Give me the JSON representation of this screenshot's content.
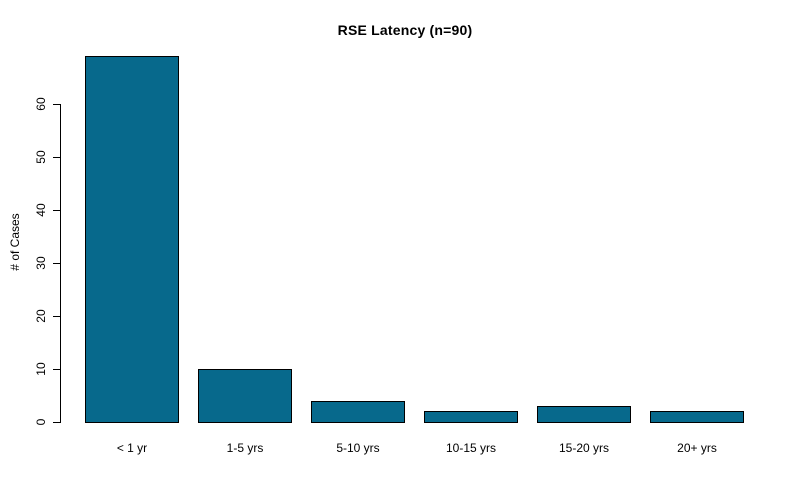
{
  "chart_data": {
    "type": "bar",
    "title": "RSE Latency (n=90)",
    "xlabel": "",
    "ylabel": "# of Cases",
    "categories": [
      "< 1 yr",
      "1-5 yrs",
      "5-10 yrs",
      "10-15 yrs",
      "15-20 yrs",
      "20+ yrs"
    ],
    "values": [
      69,
      10,
      4,
      2,
      3,
      2
    ],
    "n_total": 90,
    "yticks": [
      0,
      10,
      20,
      30,
      40,
      50,
      60
    ],
    "ylim": [
      0,
      70
    ],
    "grid": false,
    "legend": null,
    "bar_color": "#07698C",
    "bar_border_color": "#000000",
    "axis_color": "#000000",
    "text_color": "#000000",
    "background_color": "#ffffff"
  }
}
